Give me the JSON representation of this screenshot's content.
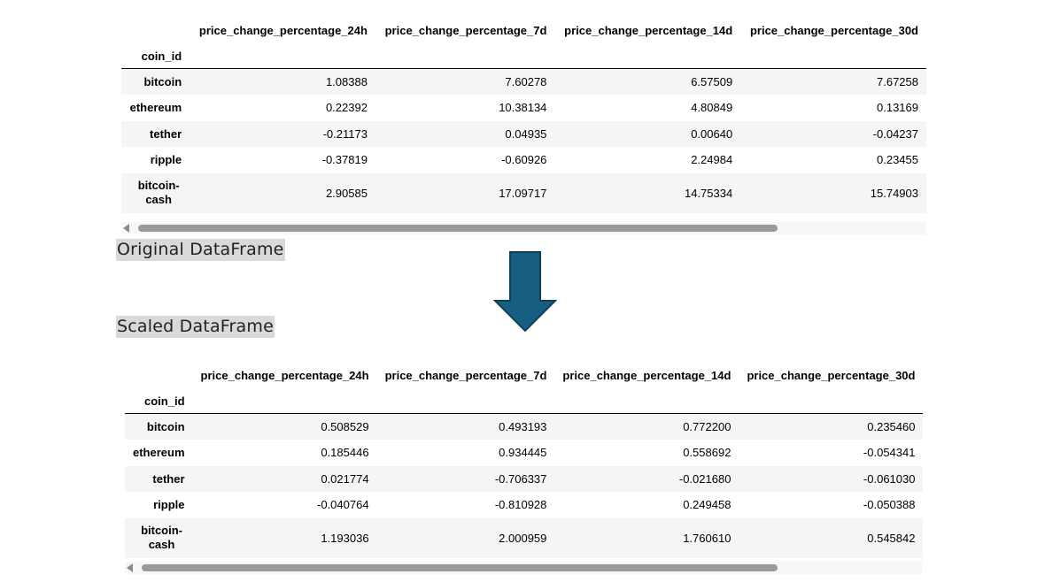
{
  "columns": [
    "price_change_percentage_24h",
    "price_change_percentage_7d",
    "price_change_percentage_14d",
    "price_change_percentage_30d"
  ],
  "index_name": "coin_id",
  "original": {
    "label": "Original DataFrame",
    "rows": [
      {
        "coin": "bitcoin",
        "values": [
          "1.08388",
          "7.60278",
          "6.57509",
          "7.67258"
        ]
      },
      {
        "coin": "ethereum",
        "values": [
          "0.22392",
          "10.38134",
          "4.80849",
          "0.13169"
        ]
      },
      {
        "coin": "tether",
        "values": [
          "-0.21173",
          "0.04935",
          "0.00640",
          "-0.04237"
        ]
      },
      {
        "coin": "ripple",
        "values": [
          "-0.37819",
          "-0.60926",
          "2.24984",
          "0.23455"
        ]
      },
      {
        "coin": "bitcoin-cash",
        "values": [
          "2.90585",
          "17.09717",
          "14.75334",
          "15.74903"
        ]
      }
    ]
  },
  "scaled": {
    "label": "Scaled DataFrame",
    "rows": [
      {
        "coin": "bitcoin",
        "values": [
          "0.508529",
          "0.493193",
          "0.772200",
          "0.235460"
        ]
      },
      {
        "coin": "ethereum",
        "values": [
          "0.185446",
          "0.934445",
          "0.558692",
          "-0.054341"
        ]
      },
      {
        "coin": "tether",
        "values": [
          "0.021774",
          "-0.706337",
          "-0.021680",
          "-0.061030"
        ]
      },
      {
        "coin": "ripple",
        "values": [
          "-0.040764",
          "-0.810928",
          "0.249458",
          "-0.050388"
        ]
      },
      {
        "coin": "bitcoin-cash",
        "values": [
          "1.193036",
          "2.000959",
          "1.760610",
          "0.545842"
        ]
      }
    ]
  },
  "colors": {
    "arrow_fill": "#175f82",
    "arrow_stroke": "#0f3f57",
    "label_bg": "#d9d9d9"
  },
  "icons": {
    "transform_arrow": "arrow-down-icon",
    "scroll_left": "triangle-left-icon"
  }
}
